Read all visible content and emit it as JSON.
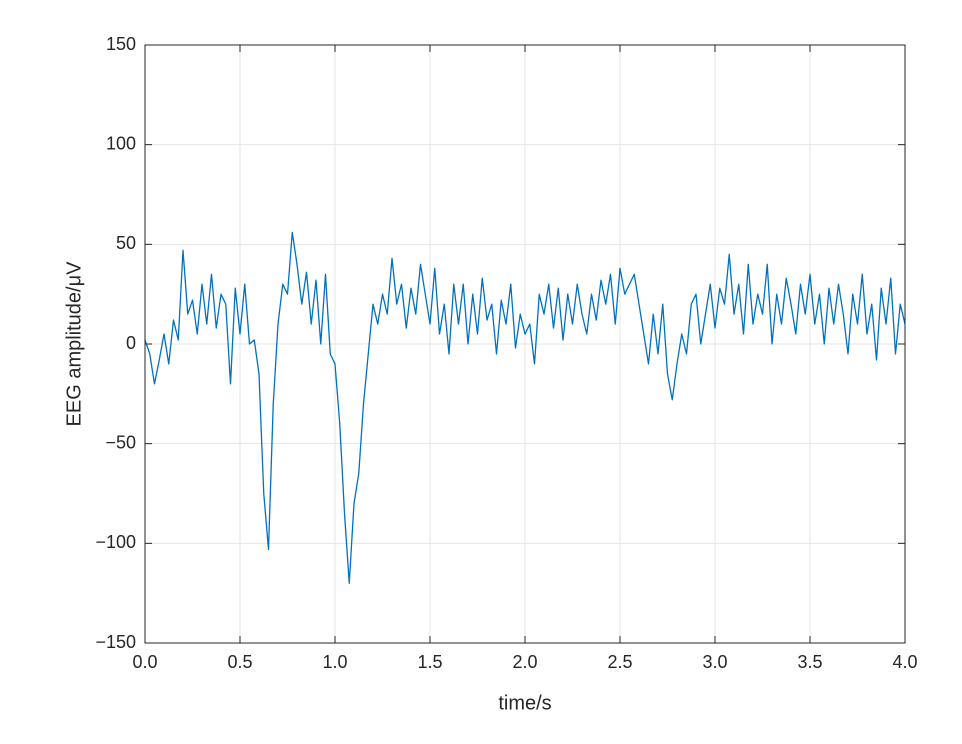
{
  "chart_data": {
    "type": "line",
    "xlabel": "time/s",
    "ylabel": "EEG amplitude/μV",
    "color": "#0072bd",
    "grid": true,
    "xlim": [
      0,
      4
    ],
    "ylim": [
      -150,
      150
    ],
    "xticks": [
      {
        "value": 0,
        "label": "0.0"
      },
      0.5,
      {
        "value": 1,
        "label": "1.0"
      },
      1.5,
      {
        "value": 2,
        "label": "2.0"
      },
      2.5,
      {
        "value": 3,
        "label": "3.0"
      },
      3.5,
      {
        "value": 4,
        "label": "4.0"
      }
    ],
    "yticks": [
      {
        "value": -150,
        "label": "−150"
      },
      {
        "value": -100,
        "label": "−100"
      },
      {
        "value": -50,
        "label": "−50"
      },
      0,
      50,
      100,
      150
    ],
    "x": [
      0,
      0.025,
      0.05,
      0.075,
      0.1,
      0.125,
      0.15,
      0.175,
      0.2,
      0.225,
      0.25,
      0.275,
      0.3,
      0.325,
      0.35,
      0.375,
      0.4,
      0.425,
      0.45,
      0.475,
      0.5,
      0.525,
      0.55,
      0.575,
      0.6,
      0.625,
      0.65,
      0.675,
      0.7,
      0.725,
      0.75,
      0.775,
      0.8,
      0.825,
      0.85,
      0.875,
      0.9,
      0.925,
      0.95,
      0.975,
      1,
      1.025,
      1.05,
      1.075,
      1.1,
      1.125,
      1.15,
      1.175,
      1.2,
      1.225,
      1.25,
      1.275,
      1.3,
      1.325,
      1.35,
      1.375,
      1.4,
      1.425,
      1.45,
      1.475,
      1.5,
      1.525,
      1.55,
      1.575,
      1.6,
      1.625,
      1.65,
      1.675,
      1.7,
      1.725,
      1.75,
      1.775,
      1.8,
      1.825,
      1.85,
      1.875,
      1.9,
      1.925,
      1.95,
      1.975,
      2,
      2.025,
      2.05,
      2.075,
      2.1,
      2.125,
      2.15,
      2.175,
      2.2,
      2.225,
      2.25,
      2.275,
      2.3,
      2.325,
      2.35,
      2.375,
      2.4,
      2.425,
      2.45,
      2.475,
      2.5,
      2.525,
      2.55,
      2.575,
      2.6,
      2.625,
      2.65,
      2.675,
      2.7,
      2.725,
      2.75,
      2.775,
      2.8,
      2.825,
      2.85,
      2.875,
      2.9,
      2.925,
      2.95,
      2.975,
      3,
      3.025,
      3.05,
      3.075,
      3.1,
      3.125,
      3.15,
      3.175,
      3.2,
      3.225,
      3.25,
      3.275,
      3.3,
      3.325,
      3.35,
      3.375,
      3.4,
      3.425,
      3.45,
      3.475,
      3.5,
      3.525,
      3.55,
      3.575,
      3.6,
      3.625,
      3.65,
      3.675,
      3.7,
      3.725,
      3.75,
      3.775,
      3.8,
      3.825,
      3.85,
      3.875,
      3.9,
      3.925,
      3.95,
      3.975,
      4
    ],
    "values": [
      2,
      -5,
      -20,
      -8,
      5,
      -10,
      12,
      2,
      47,
      15,
      22,
      5,
      30,
      10,
      35,
      8,
      25,
      20,
      -20,
      28,
      5,
      30,
      0,
      2,
      -15,
      -75,
      -103,
      -30,
      10,
      30,
      25,
      56,
      40,
      20,
      36,
      10,
      32,
      0,
      35,
      -5,
      -10,
      -40,
      -85,
      -120,
      -80,
      -65,
      -30,
      -5,
      20,
      10,
      25,
      15,
      43,
      20,
      30,
      8,
      28,
      15,
      40,
      25,
      10,
      38,
      5,
      20,
      -5,
      30,
      10,
      30,
      0,
      25,
      5,
      33,
      12,
      20,
      -5,
      22,
      10,
      30,
      -2,
      15,
      5,
      10,
      -10,
      25,
      15,
      30,
      8,
      28,
      2,
      25,
      10,
      30,
      15,
      5,
      25,
      12,
      32,
      20,
      35,
      10,
      38,
      25,
      30,
      35,
      20,
      5,
      -10,
      15,
      -5,
      20,
      -15,
      -28,
      -10,
      5,
      -5,
      20,
      25,
      0,
      15,
      30,
      8,
      28,
      20,
      45,
      15,
      30,
      5,
      40,
      10,
      25,
      15,
      40,
      0,
      25,
      10,
      33,
      20,
      5,
      30,
      15,
      35,
      10,
      25,
      0,
      28,
      10,
      30,
      15,
      -5,
      25,
      10,
      35,
      5,
      20,
      -8,
      28,
      10,
      33,
      -5,
      20,
      10
    ]
  }
}
